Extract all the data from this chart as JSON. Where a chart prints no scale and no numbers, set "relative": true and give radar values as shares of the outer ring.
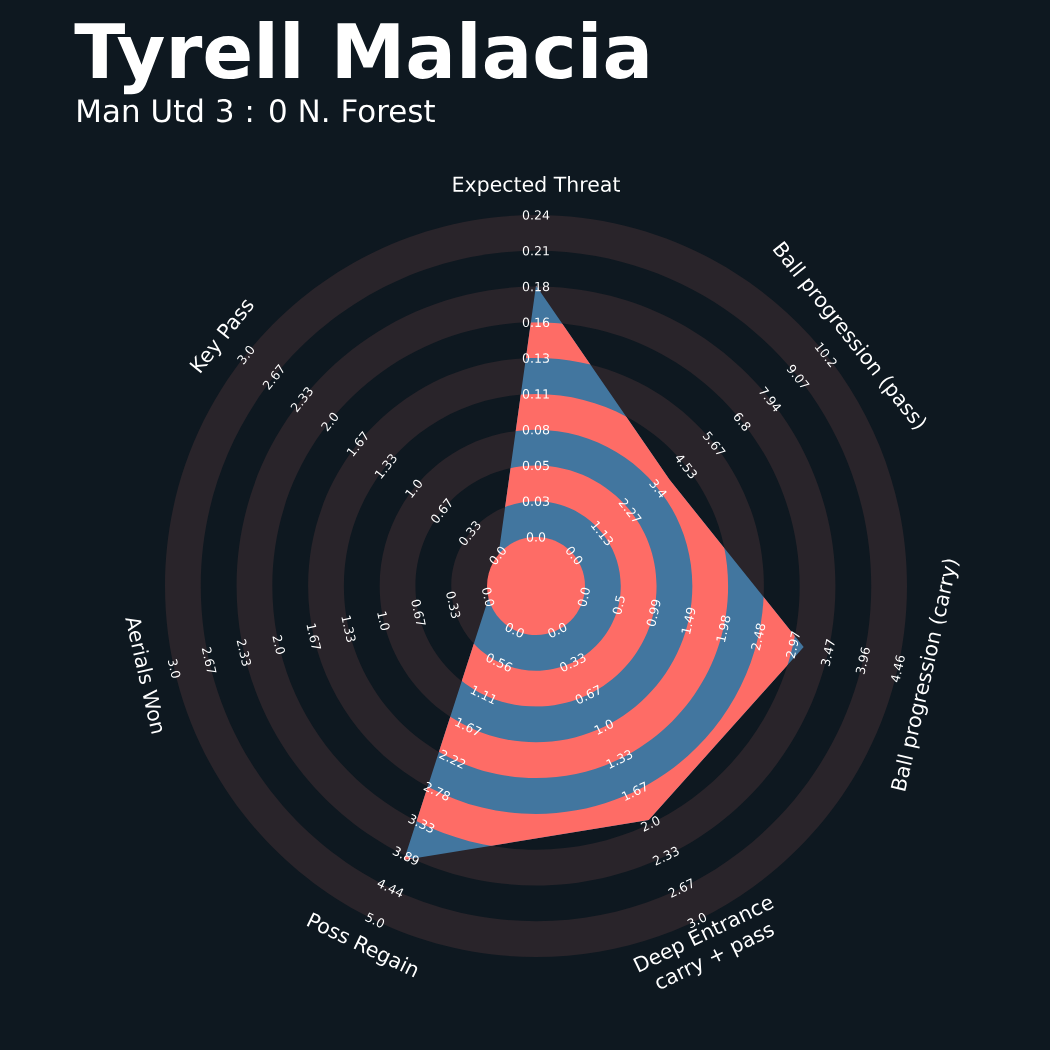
{
  "chart_data": {
    "type": "radar",
    "title": "Tyrell Malacia",
    "subtitle": "Man Utd 3 : 0 N. Forest",
    "categories": [
      "Expected Threat",
      "Ball progression (pass)",
      "Ball progression (carry)",
      "Deep Entrance\ncarry + pass",
      "Poss Regain",
      "Aerials Won",
      "Key Pass"
    ],
    "relative": true,
    "grid": true,
    "series": [
      {
        "color": "#42769f",
        "values": [
          0.81,
          0.46,
          0.74,
          0.7,
          0.82,
          0.13,
          0.13
        ]
      }
    ],
    "annotations": [
      "0.0",
      "0.03",
      "0.05",
      "0.08",
      "0.11",
      "0.13",
      "0.16",
      "0.18",
      "0.21",
      "0.24",
      "0.0",
      "1.13",
      "2.27",
      "3.4",
      "4.53",
      "5.67",
      "6.8",
      "7.94",
      "9.07",
      "10.2",
      "0.0",
      "0.5",
      "0.99",
      "1.49",
      "1.98",
      "2.48",
      "2.97",
      "3.47",
      "3.96",
      "4.46",
      "0.0",
      "0.33",
      "0.67",
      "1.0",
      "1.33",
      "1.67",
      "2.0",
      "2.33",
      "2.67",
      "3.0",
      "0.0",
      "0.56",
      "1.11",
      "1.67",
      "2.22",
      "2.78",
      "3.33",
      "3.89",
      "4.44",
      "5.0",
      "0.0",
      "0.33",
      "0.67",
      "1.0",
      "1.33",
      "1.67",
      "2.0",
      "2.33",
      "2.67",
      "3.0",
      "0.0",
      "0.33",
      "0.67",
      "1.0",
      "1.33",
      "1.67",
      "2.0",
      "2.33",
      "2.67",
      "3.0"
    ]
  }
}
